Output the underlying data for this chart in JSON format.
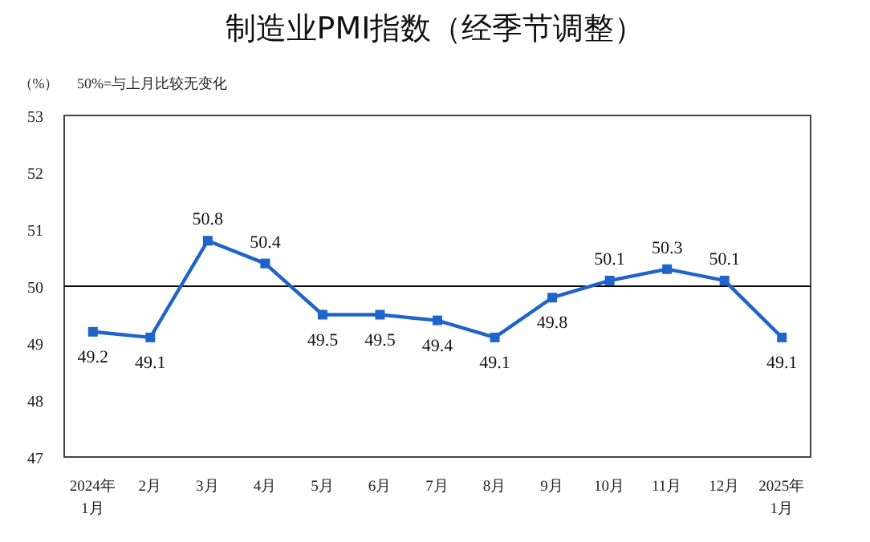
{
  "chart_data": {
    "type": "line",
    "title": "制造业PMI指数（经季节调整）",
    "ylabel": "（%）",
    "annotations": [
      "50%=与上月比较无变化"
    ],
    "categories": [
      "2024年\n1月",
      "2月",
      "3月",
      "4月",
      "5月",
      "6月",
      "7月",
      "8月",
      "9月",
      "10月",
      "11月",
      "12月",
      "2025年\n1月"
    ],
    "series": [
      {
        "color": "#1f64c8",
        "values": [
          49.2,
          49.1,
          50.8,
          50.4,
          49.5,
          49.5,
          49.4,
          49.1,
          49.8,
          50.1,
          50.3,
          50.1,
          49.1
        ]
      }
    ],
    "ylim": [
      47,
      53
    ],
    "yticks": [
      47,
      48,
      49,
      50,
      51,
      52,
      53
    ],
    "marker": "square",
    "data_labels": true,
    "grid": false,
    "ref_lines": [
      {
        "axis": "y",
        "value": 50,
        "color": "#000000"
      }
    ]
  }
}
